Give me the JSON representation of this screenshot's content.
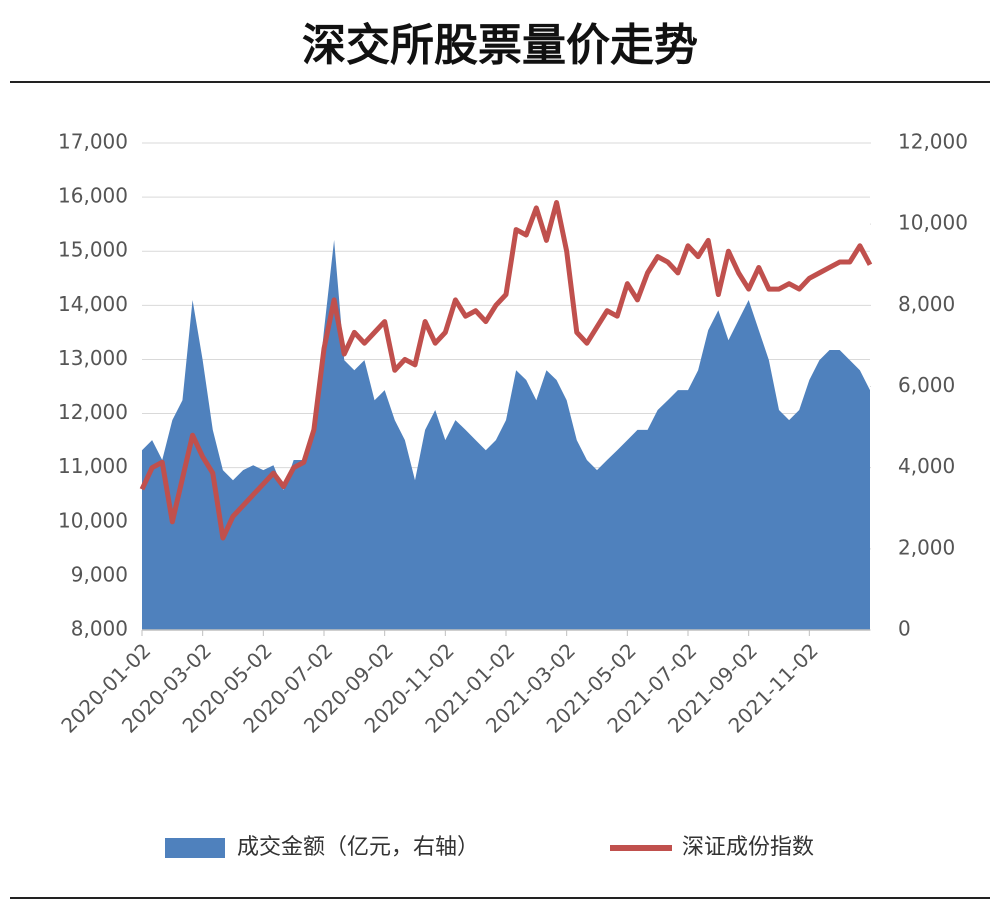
{
  "chart_data": {
    "type": "combo",
    "title": "深交所股票量价走势",
    "categories": [
      "2020-01-02",
      null,
      null,
      null,
      null,
      null,
      "2020-03-02",
      null,
      null,
      null,
      null,
      null,
      "2020-05-02",
      null,
      null,
      null,
      null,
      null,
      "2020-07-02",
      null,
      null,
      null,
      null,
      null,
      "2020-09-02",
      null,
      null,
      null,
      null,
      null,
      "2020-11-02",
      null,
      null,
      null,
      null,
      null,
      "2021-01-02",
      null,
      null,
      null,
      null,
      null,
      "2021-03-02",
      null,
      null,
      null,
      null,
      null,
      "2021-05-02",
      null,
      null,
      null,
      null,
      null,
      "2021-07-02",
      null,
      null,
      null,
      null,
      null,
      "2021-09-02",
      null,
      null,
      null,
      null,
      null,
      "2021-11-02",
      null,
      null,
      null,
      null,
      null,
      null
    ],
    "series": [
      {
        "name": "成交金额（亿元，右轴）",
        "type": "area",
        "axis": "y2",
        "color": "#4f81bd",
        "values": [
          4430,
          4680,
          4190,
          5170,
          5660,
          8130,
          6650,
          4930,
          3940,
          3690,
          3940,
          4060,
          3940,
          4060,
          3450,
          4190,
          4190,
          4930,
          7390,
          9610,
          6650,
          6400,
          6650,
          5660,
          5910,
          5170,
          4680,
          3690,
          4930,
          5420,
          4680,
          5170,
          4930,
          4680,
          4430,
          4680,
          5170,
          6400,
          6160,
          5660,
          6400,
          6160,
          5660,
          4680,
          4190,
          3940,
          4190,
          4430,
          4680,
          4930,
          4930,
          5420,
          5660,
          5910,
          5910,
          6400,
          7390,
          7880,
          7140,
          7640,
          8130,
          7390,
          6650,
          5420,
          5170,
          5420,
          6160,
          6650,
          6900,
          6900,
          6650,
          6400,
          5910
        ]
      },
      {
        "name": "深证成份指数",
        "type": "line",
        "color": "#c0504d",
        "values": [
          10600,
          11000,
          11100,
          10000,
          10800,
          11600,
          11200,
          10900,
          9700,
          10100,
          10300,
          10500,
          10700,
          10900,
          10650,
          11000,
          11100,
          11700,
          13200,
          14100,
          13100,
          13500,
          13300,
          13500,
          13700,
          12800,
          13000,
          12900,
          13700,
          13300,
          13500,
          14100,
          13800,
          13900,
          13700,
          14000,
          14200,
          15400,
          15300,
          15800,
          15200,
          15900,
          15000,
          13500,
          13300,
          13600,
          13900,
          13800,
          14400,
          14100,
          14600,
          14900,
          14800,
          14600,
          15100,
          14900,
          15200,
          14200,
          15000,
          14600,
          14300,
          14700,
          14300,
          14300,
          14400,
          14300,
          14500,
          14600,
          14700,
          14800,
          14800,
          15100,
          14750
        ]
      }
    ],
    "ylim": [
      8000,
      17000
    ],
    "yticks": [
      {
        "value": 8000,
        "label": "8,000"
      },
      {
        "value": 9000,
        "label": "9,000"
      },
      {
        "value": 10000,
        "label": "10,000"
      },
      {
        "value": 11000,
        "label": "11,000"
      },
      {
        "value": 12000,
        "label": "12,000"
      },
      {
        "value": 13000,
        "label": "13,000"
      },
      {
        "value": 14000,
        "label": "14,000"
      },
      {
        "value": 15000,
        "label": "15,000"
      },
      {
        "value": 16000,
        "label": "16,000"
      },
      {
        "value": 17000,
        "label": "17,000"
      }
    ],
    "y2lim": [
      0,
      12000
    ],
    "y2ticks": [
      0,
      {
        "value": 2000,
        "label": "2,000"
      },
      {
        "value": 4000,
        "label": "4,000"
      },
      {
        "value": 6000,
        "label": "6,000"
      },
      {
        "value": 8000,
        "label": "8,000"
      },
      {
        "value": 10000,
        "label": "10,000"
      },
      {
        "value": 12000,
        "label": "12,000"
      }
    ],
    "grid": true,
    "legend": "bottom"
  }
}
